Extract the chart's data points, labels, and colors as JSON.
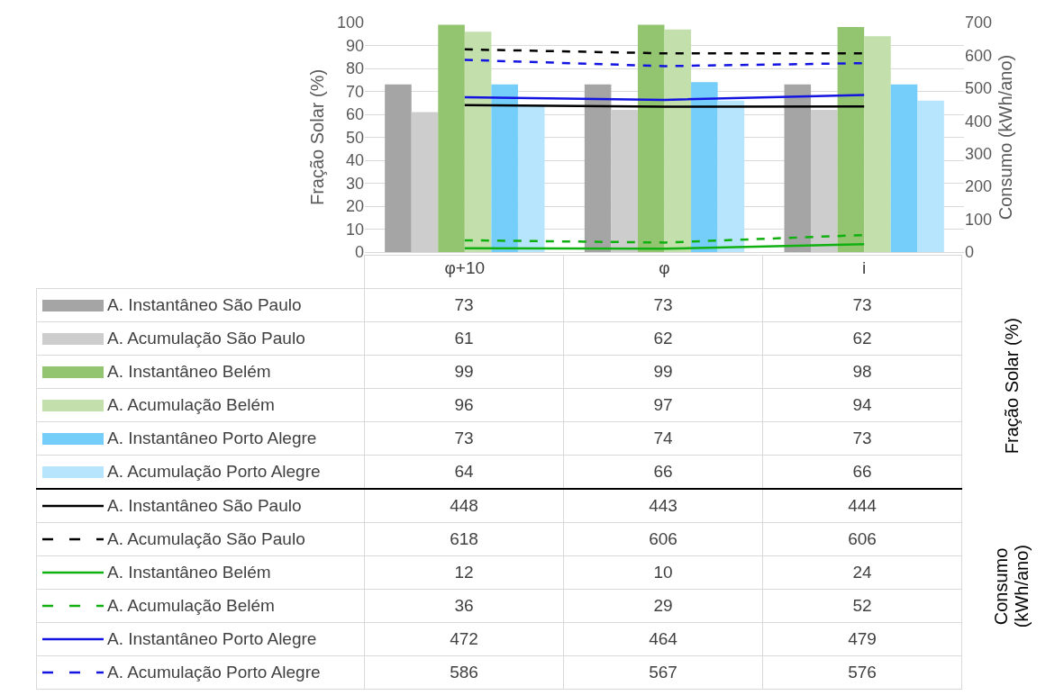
{
  "chart_data": {
    "type": "bar",
    "ylabel": "Fração Solar (%)",
    "y2label": "Consumo (kWh/ano)",
    "categories": [
      "φ+10",
      "φ",
      "i"
    ],
    "series": [
      {
        "name": "A. Instantâneo São Paulo",
        "color": "#a5a5a5",
        "values": [
          73,
          73,
          73
        ]
      },
      {
        "name": "A. Acumulação São Paulo",
        "color": "#cdcdcd",
        "values": [
          61,
          62,
          62
        ]
      },
      {
        "name": "A. Instantâneo Belém",
        "color": "#93c470",
        "values": [
          99,
          99,
          98
        ]
      },
      {
        "name": "A. Acumulação Belém",
        "color": "#c2dfac",
        "values": [
          96,
          97,
          94
        ]
      },
      {
        "name": "A. Instantâneo Porto Alegre",
        "color": "#75cdfa",
        "values": [
          73,
          74,
          73
        ]
      },
      {
        "name": "A. Acumulação Porto Alegre",
        "color": "#b6e5fd",
        "values": [
          64,
          66,
          66
        ]
      },
      {
        "name": "A. Instantâneo São Paulo",
        "type": "line",
        "axis": "y2",
        "color": "#000000",
        "line_style": "solid",
        "values": [
          448,
          443,
          444
        ]
      },
      {
        "name": "A. Acumulação São Paulo",
        "type": "line",
        "axis": "y2",
        "color": "#000000",
        "line_style": "dashed",
        "values": [
          618,
          606,
          606
        ]
      },
      {
        "name": "A. Instantâneo Belém",
        "type": "line",
        "axis": "y2",
        "color": "#10b010",
        "line_style": "solid",
        "values": [
          12,
          10,
          24
        ]
      },
      {
        "name": "A. Acumulação Belém",
        "type": "line",
        "axis": "y2",
        "color": "#10b010",
        "line_style": "dashed",
        "values": [
          36,
          29,
          52
        ]
      },
      {
        "name": "A. Instantâneo Porto Alegre",
        "type": "line",
        "axis": "y2",
        "color": "#1414e0",
        "line_style": "solid",
        "values": [
          472,
          464,
          479
        ]
      },
      {
        "name": "A. Acumulação Porto Alegre",
        "type": "line",
        "axis": "y2",
        "color": "#1414e0",
        "line_style": "dashed",
        "values": [
          586,
          567,
          576
        ]
      }
    ],
    "ylim": [
      0,
      100
    ],
    "yticks": [
      0,
      10,
      20,
      30,
      40,
      50,
      60,
      70,
      80,
      90,
      100
    ],
    "y2lim": [
      0,
      700
    ],
    "y2ticks": [
      0,
      100,
      200,
      300,
      400,
      500,
      600,
      700
    ],
    "grid": "y",
    "legend": "bottom",
    "data_labels": true
  }
}
